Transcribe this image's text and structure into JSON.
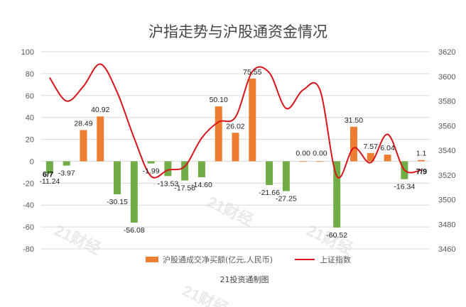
{
  "chart_data": {
    "type": "bar+line",
    "title": "沪指走势与沪股通资金情况",
    "source": "21投资通制图",
    "watermark": "21财经",
    "colors": {
      "bar_positive": "#ed7d31",
      "bar_negative": "#70ad47",
      "line": "#d9151b",
      "axis_text": "#595959",
      "grid": "#d9d9d9"
    },
    "date_markers": [
      "6/7",
      "7/9"
    ],
    "y_left": {
      "min": -80,
      "max": 100,
      "step": 20
    },
    "y_right": {
      "min": 3460,
      "max": 3620,
      "step": 20
    },
    "bar_series": {
      "name": "沪股通成交净买额(亿元,人民币)",
      "axis": "left",
      "values": [
        -11.24,
        -3.97,
        28.49,
        40.92,
        -30.15,
        -56.08,
        -1.99,
        -13.53,
        -17.56,
        -14.6,
        50.1,
        26.02,
        75.55,
        -21.66,
        -27.25,
        0.0,
        0.0,
        -60.52,
        31.5,
        7.57,
        6.04,
        -16.34,
        1.1
      ],
      "labels": [
        "-11.24",
        "-3.97",
        "28.49",
        "40.92",
        "-30.15",
        "-56.08",
        "-1.99",
        "-13.53",
        "-17.56",
        "-14.60",
        "50.10",
        "26.02",
        "75.55",
        "-21.66",
        "-27.25",
        "0.00",
        "0.00",
        "-60.52",
        "31.50",
        "7.57",
        "6.04",
        "-16.34",
        "1.1"
      ]
    },
    "line_series": {
      "name": "上证指数",
      "axis": "right",
      "values": [
        3599,
        3580,
        3592,
        3610,
        3587,
        3550,
        3519,
        3524,
        3527,
        3550,
        3563,
        3567,
        3604,
        3603,
        3574,
        3589,
        3589,
        3519,
        3542,
        3530,
        3553,
        3524,
        3524
      ]
    }
  }
}
